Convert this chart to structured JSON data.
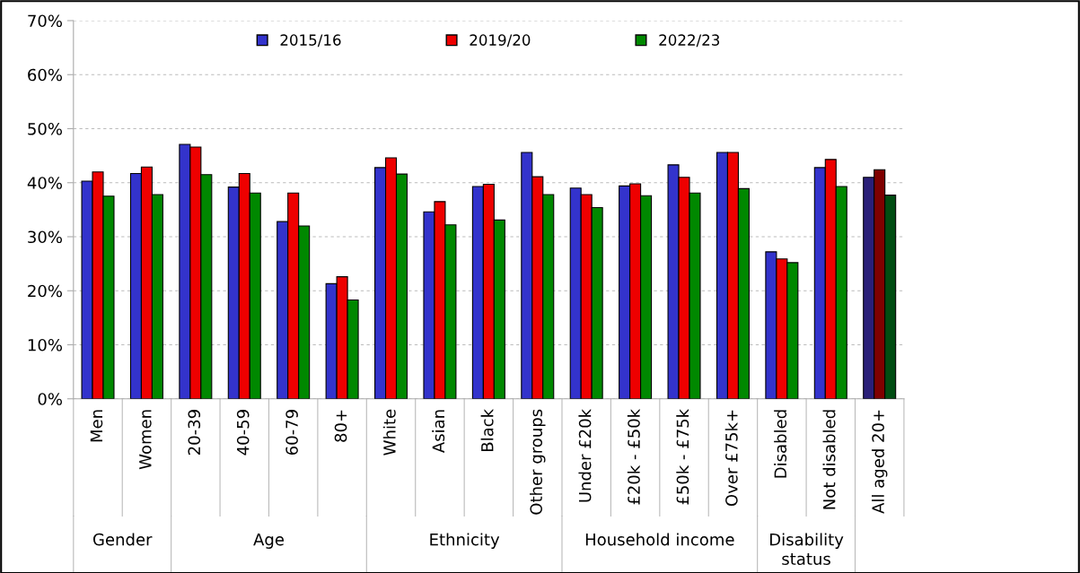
{
  "chart_data": {
    "type": "bar",
    "categories": [
      "Men",
      "Women",
      "20-39",
      "40-59",
      "60-79",
      "80+",
      "White",
      "Asian",
      "Black",
      "Other groups",
      "Under £20k",
      "£20k - £50k",
      "£50k - £75k",
      "Over £75k+",
      "Disabled",
      "Not disabled",
      "All aged 20+"
    ],
    "series": [
      {
        "name": "2015/16",
        "color": "#3333cc",
        "colors": [
          "#3333cc",
          "#3333cc",
          "#3333cc",
          "#3333cc",
          "#3333cc",
          "#3333cc",
          "#3333cc",
          "#3333cc",
          "#3333cc",
          "#3333cc",
          "#3333cc",
          "#3333cc",
          "#3333cc",
          "#3333cc",
          "#3333cc",
          "#3333cc",
          "#2a1f78"
        ],
        "values": [
          40.3,
          41.7,
          47.1,
          39.2,
          32.8,
          21.3,
          42.8,
          34.6,
          39.3,
          45.6,
          39.0,
          39.4,
          43.3,
          45.6,
          27.2,
          42.8,
          41.0
        ]
      },
      {
        "name": "2019/20",
        "color": "#ee0000",
        "colors": [
          "#ee0000",
          "#ee0000",
          "#ee0000",
          "#ee0000",
          "#ee0000",
          "#ee0000",
          "#ee0000",
          "#ee0000",
          "#ee0000",
          "#ee0000",
          "#ee0000",
          "#ee0000",
          "#ee0000",
          "#ee0000",
          "#ee0000",
          "#ee0000",
          "#7f0000"
        ],
        "values": [
          42.0,
          42.9,
          46.6,
          41.7,
          38.1,
          22.6,
          44.6,
          36.5,
          39.7,
          41.1,
          37.8,
          39.8,
          41.0,
          45.6,
          25.9,
          44.3,
          42.4
        ]
      },
      {
        "name": "2022/23",
        "color": "#008800",
        "colors": [
          "#008800",
          "#008800",
          "#008800",
          "#008800",
          "#008800",
          "#008800",
          "#008800",
          "#008800",
          "#008800",
          "#008800",
          "#008800",
          "#008800",
          "#008800",
          "#008800",
          "#008800",
          "#008800",
          "#004d12"
        ],
        "values": [
          37.5,
          37.8,
          41.5,
          38.1,
          32.0,
          18.3,
          41.6,
          32.2,
          33.1,
          37.8,
          35.4,
          37.6,
          38.1,
          38.9,
          25.2,
          39.3,
          37.7
        ]
      }
    ],
    "ylim": [
      0,
      70
    ],
    "yticks": [
      {
        "value": 0,
        "label": "0%"
      },
      {
        "value": 10,
        "label": "10%"
      },
      {
        "value": 20,
        "label": "20%"
      },
      {
        "value": 30,
        "label": "30%"
      },
      {
        "value": 40,
        "label": "40%"
      },
      {
        "value": 50,
        "label": "50%"
      },
      {
        "value": 60,
        "label": "60%"
      },
      {
        "value": 70,
        "label": "70%"
      }
    ],
    "grid": "y",
    "legend": "top",
    "annotations": [
      "Gender",
      "Age",
      "Ethnicity",
      "Household income",
      "Disability\nstatus"
    ]
  }
}
